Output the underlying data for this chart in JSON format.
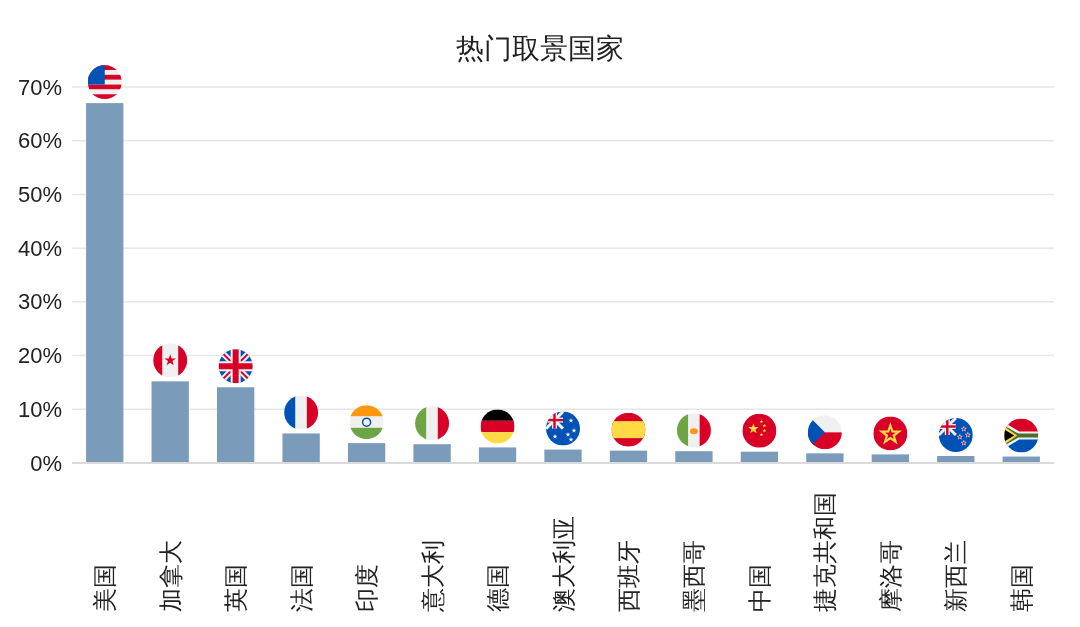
{
  "chart_data": {
    "type": "bar",
    "title": "热门取景国家",
    "categories": [
      "美国",
      "加拿大",
      "英国",
      "法国",
      "印度",
      "意大利",
      "德国",
      "澳大利亚",
      "西班牙",
      "墨西哥",
      "中国",
      "捷克共和国",
      "摩洛哥",
      "新西兰",
      "韩国"
    ],
    "values": [
      67,
      15.2,
      14.1,
      5.5,
      3.7,
      3.5,
      2.9,
      2.5,
      2.3,
      2.2,
      2.1,
      1.8,
      1.6,
      1.3,
      1.2
    ],
    "color": "#7a9cba",
    "ylim": [
      0,
      70
    ],
    "yticks": [
      {
        "value": 0,
        "label": "0%"
      },
      {
        "value": 10,
        "label": "10%"
      },
      {
        "value": 20,
        "label": "20%"
      },
      {
        "value": 30,
        "label": "30%"
      },
      {
        "value": 40,
        "label": "40%"
      },
      {
        "value": 50,
        "label": "50%"
      },
      {
        "value": 60,
        "label": "60%"
      },
      {
        "value": 70,
        "label": "70%"
      }
    ],
    "grid": "y"
  }
}
